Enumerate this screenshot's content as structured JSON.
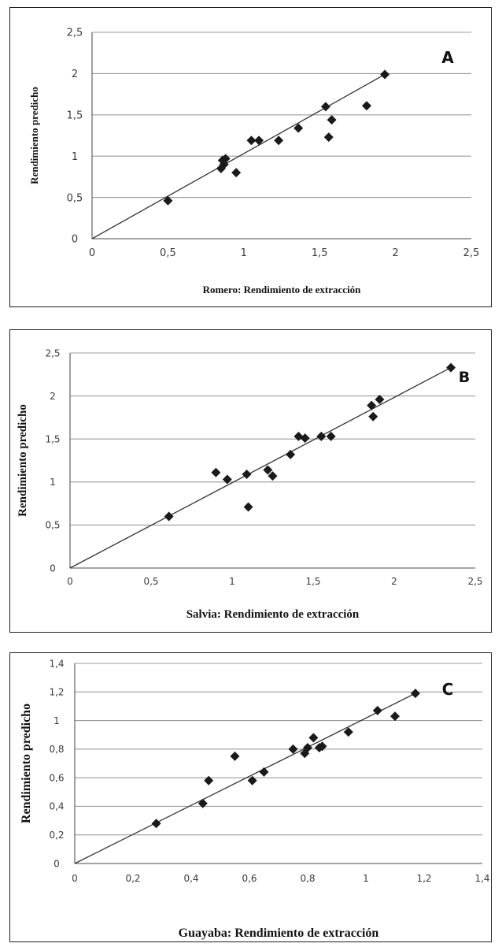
{
  "chart_data": [
    {
      "type": "scatter",
      "panel_label": "A",
      "xlabel": "Romero: Rendimiento de extracción",
      "ylabel": "Rendimiento predicho",
      "xlim": [
        0,
        2.5
      ],
      "ylim": [
        0,
        2.5
      ],
      "xticks": [
        "0",
        "0,5",
        "1",
        "1,5",
        "2",
        "2,5"
      ],
      "yticks": [
        "0",
        "0,5",
        "1",
        "1,5",
        "2",
        "2,5"
      ],
      "grid": "horizontal",
      "trendline": [
        [
          0,
          0
        ],
        [
          1.93,
          1.99
        ]
      ],
      "series": [
        {
          "marker": "diamond",
          "points": [
            [
              0.5,
              0.46
            ],
            [
              0.85,
              0.85
            ],
            [
              0.86,
              0.95
            ],
            [
              0.88,
              0.97
            ],
            [
              0.87,
              0.9
            ],
            [
              0.95,
              0.8
            ],
            [
              1.05,
              1.19
            ],
            [
              1.1,
              1.19
            ],
            [
              1.23,
              1.19
            ],
            [
              1.36,
              1.34
            ],
            [
              1.54,
              1.6
            ],
            [
              1.56,
              1.23
            ],
            [
              1.58,
              1.44
            ],
            [
              1.81,
              1.61
            ],
            [
              1.93,
              1.99
            ]
          ]
        }
      ]
    },
    {
      "type": "scatter",
      "panel_label": "B",
      "xlabel": "Salvia: Rendimiento de extracción",
      "ylabel": "Rendimiento predicho",
      "xlim": [
        0,
        2.5
      ],
      "ylim": [
        0,
        2.5
      ],
      "xticks": [
        "0",
        "0,5",
        "1",
        "1,5",
        "2",
        "2,5"
      ],
      "yticks": [
        "0",
        "0,5",
        "1",
        "1,5",
        "2",
        "2,5"
      ],
      "grid": "horizontal",
      "trendline": [
        [
          0,
          0
        ],
        [
          2.35,
          2.33
        ]
      ],
      "series": [
        {
          "marker": "diamond",
          "points": [
            [
              0.61,
              0.6
            ],
            [
              0.9,
              1.11
            ],
            [
              0.97,
              1.03
            ],
            [
              1.09,
              1.09
            ],
            [
              1.1,
              0.71
            ],
            [
              1.22,
              1.14
            ],
            [
              1.25,
              1.07
            ],
            [
              1.36,
              1.32
            ],
            [
              1.41,
              1.53
            ],
            [
              1.45,
              1.51
            ],
            [
              1.55,
              1.53
            ],
            [
              1.61,
              1.53
            ],
            [
              1.86,
              1.89
            ],
            [
              1.87,
              1.76
            ],
            [
              1.91,
              1.96
            ],
            [
              2.35,
              2.33
            ]
          ]
        }
      ]
    },
    {
      "type": "scatter",
      "panel_label": "C",
      "xlabel": "Guayaba: Rendimiento de extracción",
      "ylabel": "Rendimiento predicho",
      "xlim": [
        0,
        1.4
      ],
      "ylim": [
        0,
        1.4
      ],
      "xticks": [
        "0",
        "0,2",
        "0,4",
        "0,6",
        "0,8",
        "1",
        "1,2",
        "1,4"
      ],
      "yticks": [
        "0",
        "0,2",
        "0,4",
        "0,6",
        "0,8",
        "1",
        "1,2",
        "1,4"
      ],
      "grid": "horizontal",
      "trendline": [
        [
          0,
          0
        ],
        [
          1.17,
          1.19
        ]
      ],
      "series": [
        {
          "marker": "diamond",
          "points": [
            [
              0.28,
              0.28
            ],
            [
              0.44,
              0.42
            ],
            [
              0.46,
              0.58
            ],
            [
              0.55,
              0.75
            ],
            [
              0.61,
              0.58
            ],
            [
              0.65,
              0.64
            ],
            [
              0.75,
              0.8
            ],
            [
              0.79,
              0.77
            ],
            [
              0.8,
              0.81
            ],
            [
              0.82,
              0.88
            ],
            [
              0.84,
              0.81
            ],
            [
              0.85,
              0.82
            ],
            [
              0.94,
              0.92
            ],
            [
              1.04,
              1.07
            ],
            [
              1.1,
              1.03
            ],
            [
              1.17,
              1.19
            ]
          ]
        }
      ]
    }
  ]
}
